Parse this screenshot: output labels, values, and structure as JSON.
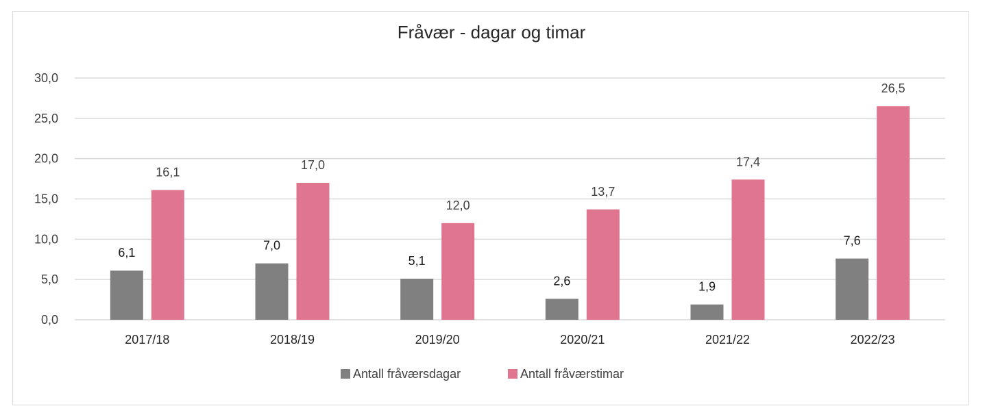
{
  "chart_data": {
    "type": "bar",
    "title": "Fråvær - dagar og timar",
    "xlabel": "",
    "ylabel": "",
    "categories": [
      "2017/18",
      "2018/19",
      "2019/20",
      "2020/21",
      "2021/22",
      "2022/23"
    ],
    "series": [
      {
        "name": "Antall fråværsdagar",
        "values": [
          6.1,
          7.0,
          5.1,
          2.6,
          1.9,
          7.6
        ],
        "labels": [
          "6,1",
          "7,0",
          "5,1",
          "2,6",
          "1,9",
          "7,6"
        ],
        "color": "#808080"
      },
      {
        "name": "Antall fråværstimar",
        "values": [
          16.1,
          17.0,
          12.0,
          13.7,
          17.4,
          26.5
        ],
        "labels": [
          "16,1",
          "17,0",
          "12,0",
          "13,7",
          "17,4",
          "26,5"
        ],
        "color": "#E07590"
      }
    ],
    "ylim": [
      0,
      30
    ],
    "yticks": [
      0,
      5,
      10,
      15,
      20,
      25,
      30
    ],
    "ytick_labels": [
      "0,0",
      "5,0",
      "10,0",
      "15,0",
      "20,0",
      "25,0",
      "30,0"
    ],
    "grid": true,
    "legend_position": "bottom"
  },
  "colors": {
    "gridline": "#d9d9d9",
    "border": "#d9d9d9"
  }
}
